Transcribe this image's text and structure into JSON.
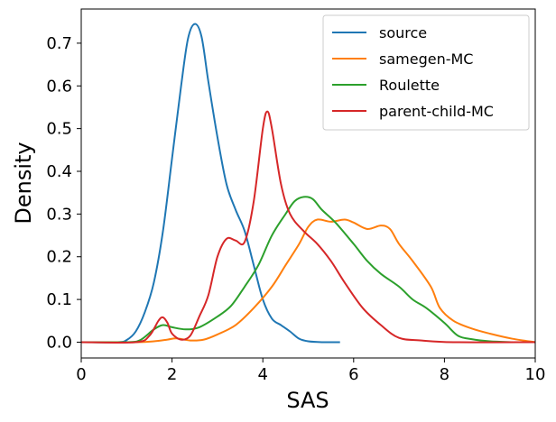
{
  "chart_data": {
    "type": "line",
    "title": "",
    "xlabel": "SAS",
    "ylabel": "Density",
    "xlim": [
      0,
      10
    ],
    "ylim": [
      -0.037,
      0.78
    ],
    "x_ticks": [
      0,
      2,
      4,
      6,
      8,
      10
    ],
    "x_tick_labels": [
      "0",
      "2",
      "4",
      "6",
      "8",
      "10"
    ],
    "y_ticks": [
      0.0,
      0.1,
      0.2,
      0.3,
      0.4,
      0.5,
      0.6,
      0.7
    ],
    "y_tick_labels": [
      "0.0",
      "0.1",
      "0.2",
      "0.3",
      "0.4",
      "0.5",
      "0.6",
      "0.7"
    ],
    "grid": false,
    "legend_position": "top-right",
    "series": [
      {
        "name": "source",
        "color": "#1f77b4",
        "points": [
          [
            0,
            0
          ],
          [
            0.8,
            0.0
          ],
          [
            1.0,
            0.005
          ],
          [
            1.2,
            0.025
          ],
          [
            1.4,
            0.07
          ],
          [
            1.6,
            0.14
          ],
          [
            1.8,
            0.26
          ],
          [
            2.0,
            0.43
          ],
          [
            2.2,
            0.6
          ],
          [
            2.35,
            0.71
          ],
          [
            2.5,
            0.745
          ],
          [
            2.65,
            0.715
          ],
          [
            2.8,
            0.61
          ],
          [
            3.0,
            0.48
          ],
          [
            3.2,
            0.37
          ],
          [
            3.4,
            0.31
          ],
          [
            3.6,
            0.26
          ],
          [
            3.8,
            0.18
          ],
          [
            4.0,
            0.1
          ],
          [
            4.2,
            0.055
          ],
          [
            4.4,
            0.04
          ],
          [
            4.6,
            0.025
          ],
          [
            4.8,
            0.008
          ],
          [
            5.0,
            0.002
          ],
          [
            5.3,
            0.0
          ],
          [
            5.7,
            0.0
          ]
        ]
      },
      {
        "name": "samegen-MC",
        "color": "#ff7f0e",
        "points": [
          [
            0,
            0
          ],
          [
            1.2,
            0.0
          ],
          [
            1.6,
            0.002
          ],
          [
            1.9,
            0.006
          ],
          [
            2.1,
            0.009
          ],
          [
            2.4,
            0.004
          ],
          [
            2.7,
            0.006
          ],
          [
            3.0,
            0.018
          ],
          [
            3.4,
            0.04
          ],
          [
            3.8,
            0.08
          ],
          [
            4.2,
            0.13
          ],
          [
            4.5,
            0.18
          ],
          [
            4.8,
            0.23
          ],
          [
            5.0,
            0.27
          ],
          [
            5.2,
            0.287
          ],
          [
            5.5,
            0.282
          ],
          [
            5.8,
            0.287
          ],
          [
            6.0,
            0.28
          ],
          [
            6.3,
            0.265
          ],
          [
            6.6,
            0.273
          ],
          [
            6.8,
            0.265
          ],
          [
            7.0,
            0.23
          ],
          [
            7.3,
            0.19
          ],
          [
            7.7,
            0.13
          ],
          [
            7.9,
            0.08
          ],
          [
            8.2,
            0.05
          ],
          [
            8.6,
            0.032
          ],
          [
            9.0,
            0.02
          ],
          [
            9.5,
            0.008
          ],
          [
            10.0,
            0.0
          ]
        ]
      },
      {
        "name": "Roulette",
        "color": "#2ca02c",
        "points": [
          [
            0,
            0
          ],
          [
            1.0,
            0.0
          ],
          [
            1.3,
            0.005
          ],
          [
            1.6,
            0.03
          ],
          [
            1.8,
            0.04
          ],
          [
            2.0,
            0.035
          ],
          [
            2.3,
            0.03
          ],
          [
            2.6,
            0.035
          ],
          [
            3.0,
            0.06
          ],
          [
            3.3,
            0.085
          ],
          [
            3.6,
            0.13
          ],
          [
            3.9,
            0.18
          ],
          [
            4.2,
            0.25
          ],
          [
            4.5,
            0.3
          ],
          [
            4.7,
            0.33
          ],
          [
            4.9,
            0.34
          ],
          [
            5.1,
            0.335
          ],
          [
            5.3,
            0.31
          ],
          [
            5.6,
            0.28
          ],
          [
            6.0,
            0.23
          ],
          [
            6.3,
            0.19
          ],
          [
            6.6,
            0.16
          ],
          [
            7.0,
            0.13
          ],
          [
            7.3,
            0.1
          ],
          [
            7.6,
            0.08
          ],
          [
            8.0,
            0.045
          ],
          [
            8.3,
            0.015
          ],
          [
            8.6,
            0.007
          ],
          [
            9.0,
            0.002
          ],
          [
            9.5,
            0.0
          ]
        ]
      },
      {
        "name": "parent-child-MC",
        "color": "#d62728",
        "points": [
          [
            0,
            0
          ],
          [
            1.2,
            0.0
          ],
          [
            1.5,
            0.015
          ],
          [
            1.7,
            0.05
          ],
          [
            1.8,
            0.058
          ],
          [
            1.9,
            0.045
          ],
          [
            2.0,
            0.02
          ],
          [
            2.2,
            0.006
          ],
          [
            2.4,
            0.015
          ],
          [
            2.6,
            0.06
          ],
          [
            2.8,
            0.11
          ],
          [
            3.0,
            0.2
          ],
          [
            3.2,
            0.242
          ],
          [
            3.4,
            0.238
          ],
          [
            3.6,
            0.235
          ],
          [
            3.8,
            0.33
          ],
          [
            4.0,
            0.5
          ],
          [
            4.1,
            0.54
          ],
          [
            4.2,
            0.5
          ],
          [
            4.4,
            0.37
          ],
          [
            4.6,
            0.3
          ],
          [
            4.9,
            0.26
          ],
          [
            5.2,
            0.23
          ],
          [
            5.5,
            0.19
          ],
          [
            5.8,
            0.14
          ],
          [
            6.2,
            0.08
          ],
          [
            6.6,
            0.04
          ],
          [
            7.0,
            0.01
          ],
          [
            7.5,
            0.004
          ],
          [
            8.2,
            0.0
          ],
          [
            10.0,
            0.0
          ]
        ]
      }
    ]
  }
}
